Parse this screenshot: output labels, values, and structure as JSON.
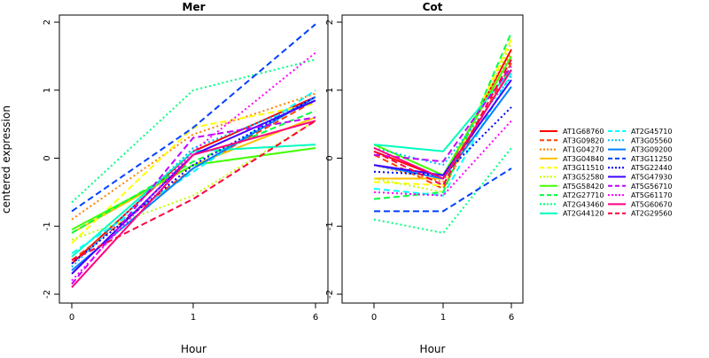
{
  "figure": {
    "ylabel": "centered expression",
    "legend": {
      "position": "right",
      "items": [
        {
          "name": "AT1G68760",
          "color": "#ff0000",
          "dash": "solid"
        },
        {
          "name": "AT3G09820",
          "color": "#ff4000",
          "dash": "dashed"
        },
        {
          "name": "AT1G04270",
          "color": "#ff8000",
          "dash": "dotted"
        },
        {
          "name": "AT3G04840",
          "color": "#ffbf00",
          "dash": "solid"
        },
        {
          "name": "AT3G11510",
          "color": "#ffff00",
          "dash": "dashed"
        },
        {
          "name": "AT3G52580",
          "color": "#bfff00",
          "dash": "dotted"
        },
        {
          "name": "AT5G58420",
          "color": "#40ff00",
          "dash": "solid"
        },
        {
          "name": "AT2G27710",
          "color": "#00ff40",
          "dash": "dashed"
        },
        {
          "name": "AT2G43460",
          "color": "#00ff80",
          "dash": "dotted"
        },
        {
          "name": "AT2G44120",
          "color": "#00ffbf",
          "dash": "solid"
        },
        {
          "name": "AT2G45710",
          "color": "#00ffff",
          "dash": "dashed"
        },
        {
          "name": "AT3G05560",
          "color": "#00bfff",
          "dash": "dotted"
        },
        {
          "name": "AT3G09200",
          "color": "#0080ff",
          "dash": "solid"
        },
        {
          "name": "AT3G11250",
          "color": "#0040ff",
          "dash": "dashed"
        },
        {
          "name": "AT5G22440",
          "color": "#0000ff",
          "dash": "dotted"
        },
        {
          "name": "AT5G47930",
          "color": "#4000ff",
          "dash": "solid"
        },
        {
          "name": "AT5G56710",
          "color": "#bf00ff",
          "dash": "dashed"
        },
        {
          "name": "AT5G61170",
          "color": "#ff00ff",
          "dash": "dotted"
        },
        {
          "name": "AT5G60670",
          "color": "#ff0080",
          "dash": "solid"
        },
        {
          "name": "AT2G29560",
          "color": "#ff0040",
          "dash": "dashed"
        }
      ]
    }
  },
  "chart_data": [
    {
      "type": "line",
      "title": "Mer",
      "xlabel": "Hour",
      "ylabel": "centered expression",
      "categories": [
        "0",
        "1",
        "6"
      ],
      "ylim": [
        -2,
        2
      ],
      "yticks": [
        -2,
        -1,
        0,
        1,
        2
      ],
      "grid": false,
      "series": [
        {
          "name": "AT1G68760",
          "values": [
            -1.55,
            0.1,
            0.9
          ]
        },
        {
          "name": "AT3G09820",
          "values": [
            -1.5,
            -0.15,
            0.85
          ]
        },
        {
          "name": "AT1G04270",
          "values": [
            -0.9,
            0.35,
            0.95
          ]
        },
        {
          "name": "AT3G04840",
          "values": [
            -1.1,
            -0.1,
            0.6
          ]
        },
        {
          "name": "AT3G11510",
          "values": [
            -1.25,
            0.45,
            0.8
          ]
        },
        {
          "name": "AT3G52580",
          "values": [
            -1.2,
            -0.55,
            0.55
          ]
        },
        {
          "name": "AT5G58420",
          "values": [
            -1.05,
            -0.1,
            0.15
          ]
        },
        {
          "name": "AT2G27710",
          "values": [
            -1.1,
            -0.05,
            0.7
          ]
        },
        {
          "name": "AT2G43460",
          "values": [
            -0.65,
            1.0,
            1.45
          ]
        },
        {
          "name": "AT2G44120",
          "values": [
            -1.45,
            0.1,
            0.2
          ]
        },
        {
          "name": "AT2G45710",
          "values": [
            -1.4,
            -0.2,
            1.0
          ]
        },
        {
          "name": "AT3G05560",
          "values": [
            -1.6,
            0.15,
            0.85
          ]
        },
        {
          "name": "AT3G09200",
          "values": [
            -1.65,
            -0.15,
            0.9
          ]
        },
        {
          "name": "AT3G11250",
          "values": [
            -0.78,
            0.45,
            1.97
          ]
        },
        {
          "name": "AT5G22440",
          "values": [
            -1.55,
            -0.1,
            0.9
          ]
        },
        {
          "name": "AT5G47930",
          "values": [
            -1.7,
            0.05,
            0.85
          ]
        },
        {
          "name": "AT5G56710",
          "values": [
            -1.85,
            0.3,
            0.6
          ]
        },
        {
          "name": "AT5G61170",
          "values": [
            -1.8,
            0.1,
            1.55
          ]
        },
        {
          "name": "AT5G60670",
          "values": [
            -1.9,
            0.05,
            0.55
          ]
        },
        {
          "name": "AT2G29560",
          "values": [
            -1.5,
            -0.6,
            0.55
          ]
        }
      ]
    },
    {
      "type": "line",
      "title": "Cot",
      "xlabel": "Hour",
      "categories": [
        "0",
        "1",
        "6"
      ],
      "ylim": [
        -2,
        2
      ],
      "yticks": [
        -2,
        -1,
        0,
        1,
        2
      ],
      "grid": false,
      "series": [
        {
          "name": "AT1G68760",
          "values": [
            0.1,
            -0.3,
            1.6
          ]
        },
        {
          "name": "AT3G09820",
          "values": [
            0.05,
            -0.45,
            1.4
          ]
        },
        {
          "name": "AT1G04270",
          "values": [
            -0.1,
            -0.35,
            1.55
          ]
        },
        {
          "name": "AT3G04840",
          "values": [
            -0.3,
            -0.3,
            1.3
          ]
        },
        {
          "name": "AT3G11510",
          "values": [
            -0.35,
            -0.4,
            1.75
          ]
        },
        {
          "name": "AT3G52580",
          "values": [
            -0.3,
            -0.5,
            1.7
          ]
        },
        {
          "name": "AT5G58420",
          "values": [
            0.2,
            -0.25,
            1.5
          ]
        },
        {
          "name": "AT2G27710",
          "values": [
            -0.6,
            -0.5,
            1.85
          ]
        },
        {
          "name": "AT2G43460",
          "values": [
            -0.9,
            -1.1,
            0.15
          ]
        },
        {
          "name": "AT2G44120",
          "values": [
            0.2,
            0.1,
            1.3
          ]
        },
        {
          "name": "AT2G45710",
          "values": [
            -0.45,
            -0.55,
            1.25
          ]
        },
        {
          "name": "AT3G05560",
          "values": [
            0.15,
            -0.1,
            1.2
          ]
        },
        {
          "name": "AT3G09200",
          "values": [
            -0.1,
            -0.3,
            1.05
          ]
        },
        {
          "name": "AT3G11250",
          "values": [
            -0.78,
            -0.78,
            -0.15
          ]
        },
        {
          "name": "AT5G22440",
          "values": [
            -0.2,
            -0.25,
            0.75
          ]
        },
        {
          "name": "AT5G47930",
          "values": [
            -0.1,
            -0.25,
            1.15
          ]
        },
        {
          "name": "AT5G56710",
          "values": [
            0.05,
            -0.05,
            1.35
          ]
        },
        {
          "name": "AT5G61170",
          "values": [
            -0.5,
            -0.55,
            0.55
          ]
        },
        {
          "name": "AT5G60670",
          "values": [
            0.15,
            -0.3,
            1.3
          ]
        },
        {
          "name": "AT2G29560",
          "values": [
            0.1,
            -0.4,
            1.45
          ]
        }
      ]
    }
  ]
}
